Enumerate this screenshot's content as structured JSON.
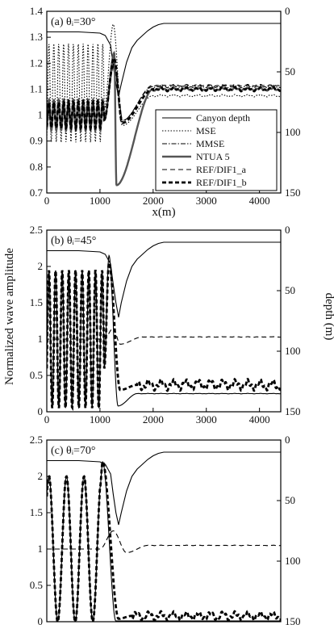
{
  "figure": {
    "ylabel_left": "Normalized wave amplitude",
    "ylabel_right": "depth (m)"
  },
  "chart_data": [
    {
      "type": "line",
      "panel_label": "(a)",
      "angle_label": "θᵢ=30°",
      "xlabel": "x(m)",
      "xlim": [
        0,
        4400
      ],
      "ylim": [
        0.7,
        1.4
      ],
      "y2lim": [
        150,
        0
      ],
      "x_ticks": [
        "0",
        "1000",
        "2000",
        "3000",
        "4000"
      ],
      "y_ticks": [
        "0.7",
        "0.8",
        "0.9",
        "1",
        "1.1",
        "1.2",
        "1.3",
        "1.4"
      ],
      "y2_ticks": [
        "0",
        "50",
        "100",
        "150"
      ],
      "legend": {
        "position": "right",
        "entries": [
          "Canyon depth",
          "MSE",
          "MMSE",
          "NTUA 5",
          "REF/DIF1_a",
          "REF/DIF1_b"
        ]
      },
      "series": [
        {
          "name": "Canyon depth",
          "axis": "right",
          "style": "thin-solid",
          "x": [
            0,
            600,
            1000,
            1100,
            1200,
            1250,
            1300,
            1350,
            1400,
            1500,
            1600,
            1700,
            1800,
            1900,
            2000,
            2100,
            2200,
            2400,
            4400
          ],
          "y": [
            17,
            17,
            18,
            20,
            28,
            45,
            60,
            70,
            60,
            42,
            30,
            24,
            20,
            16,
            13,
            11,
            10,
            10,
            10
          ]
        },
        {
          "name": "MSE",
          "axis": "left",
          "style": "dotted",
          "profile": {
            "osc_end": 1080,
            "period": 92,
            "amp": 0.19,
            "base": 1.085,
            "peak_x": 1250,
            "peak_y": 1.35,
            "dip_x": 1420,
            "dip_y": 0.96,
            "settle_x": 2000,
            "final": 1.075,
            "ripple": 0.003
          }
        },
        {
          "name": "MMSE",
          "axis": "left",
          "style": "dash-dot",
          "profile": {
            "osc_end": 1080,
            "period": 92,
            "amp": 0.055,
            "base": 1.0,
            "peak_x": 1270,
            "peak_y": 1.2,
            "dip_x": 1400,
            "dip_y": 0.975,
            "settle_x": 2000,
            "final": 1.11,
            "ripple": 0.003
          }
        },
        {
          "name": "NTUA 5",
          "axis": "left",
          "style": "thick-gray",
          "profile": {
            "osc_end": 1080,
            "period": 92,
            "amp": 0.06,
            "base": 1.0,
            "peak_x": 1270,
            "peak_y": 1.24,
            "dip_x": 1310,
            "dip_y": 0.73,
            "settle_x": 2000,
            "final": 1.1,
            "ripple": 0.004
          }
        },
        {
          "name": "REF/DIF1_a",
          "axis": "left",
          "style": "dashed",
          "profile": {
            "osc_end": 1080,
            "period": 92,
            "amp": 0.045,
            "base": 1.0,
            "peak_x": 1270,
            "peak_y": 1.2,
            "dip_x": 1430,
            "dip_y": 0.98,
            "settle_x": 2000,
            "final": 1.115,
            "ripple": 0.002
          }
        },
        {
          "name": "REF/DIF1_b",
          "axis": "left",
          "style": "thick-dashed",
          "profile": {
            "osc_end": 1080,
            "period": 92,
            "amp": 0.05,
            "base": 1.0,
            "peak_x": 1265,
            "peak_y": 1.22,
            "dip_x": 1420,
            "dip_y": 0.97,
            "settle_x": 2000,
            "final": 1.1,
            "ripple": 0.005
          }
        }
      ]
    },
    {
      "type": "line",
      "panel_label": "(b)",
      "angle_label": "θᵢ=45°",
      "xlim": [
        0,
        4400
      ],
      "ylim": [
        0,
        2.5
      ],
      "y2lim": [
        150,
        0
      ],
      "x_ticks": [
        "0",
        "1000",
        "2000",
        "3000",
        "4000"
      ],
      "y_ticks": [
        "0",
        "0.5",
        "1",
        "1.5",
        "2",
        "2.5"
      ],
      "y2_ticks": [
        "0",
        "50",
        "100",
        "150"
      ],
      "series": [
        {
          "name": "Canyon depth",
          "axis": "right",
          "style": "thin-solid",
          "x": [
            0,
            600,
            1000,
            1100,
            1200,
            1250,
            1300,
            1350,
            1400,
            1500,
            1600,
            1700,
            1800,
            1900,
            2000,
            2100,
            2200,
            2400,
            4400
          ],
          "y": [
            17,
            17,
            18,
            20,
            28,
            45,
            60,
            72,
            60,
            42,
            30,
            24,
            20,
            16,
            13,
            11,
            10,
            10,
            10
          ]
        },
        {
          "name": "NTUA 5",
          "axis": "left",
          "style": "thin-solid",
          "profile": {
            "osc_end": 1080,
            "period": 125,
            "amp": 0.95,
            "base": 1.0,
            "peak_x": 1170,
            "peak_y": 2.15,
            "dip_x": 1340,
            "dip_y": 0.08,
            "settle_x": 1700,
            "final": 0.25,
            "ripple": 0.002
          }
        },
        {
          "name": "REF/DIF1_b",
          "axis": "left",
          "style": "thick-dashed",
          "profile": {
            "osc_end": 1080,
            "period": 125,
            "amp": 0.95,
            "base": 1.0,
            "peak_x": 1170,
            "peak_y": 2.05,
            "dip_x": 1380,
            "dip_y": 0.3,
            "settle_x": 1700,
            "final": 0.37,
            "ripple": 0.05
          }
        },
        {
          "name": "REF/DIF1_a",
          "axis": "left",
          "style": "dashed",
          "profile": {
            "osc_end": 1080,
            "period": 125,
            "amp": 0.0,
            "base": 1.0,
            "peak_x": 1250,
            "peak_y": 1.15,
            "dip_x": 1380,
            "dip_y": 0.93,
            "settle_x": 1800,
            "final": 1.03,
            "ripple": 0.002
          }
        }
      ]
    },
    {
      "type": "line",
      "panel_label": "(c)",
      "angle_label": "θᵢ=70°",
      "xlim": [
        0,
        4400
      ],
      "ylim": [
        0,
        2.5
      ],
      "y2lim": [
        150,
        0
      ],
      "y_ticks": [
        "0",
        "0.5",
        "1",
        "1.5",
        "2",
        "2.5"
      ],
      "y2_ticks": [
        "0",
        "50",
        "100",
        "150"
      ],
      "series": [
        {
          "name": "Canyon depth",
          "axis": "right",
          "style": "thin-solid",
          "x": [
            0,
            600,
            1000,
            1100,
            1200,
            1250,
            1300,
            1350,
            1400,
            1500,
            1600,
            1700,
            1800,
            1900,
            2000,
            2100,
            2200,
            2400,
            4400
          ],
          "y": [
            17,
            17,
            18,
            20,
            28,
            45,
            60,
            70,
            60,
            42,
            30,
            24,
            20,
            16,
            13,
            11,
            10,
            10,
            10
          ]
        },
        {
          "name": "NTUA 5",
          "axis": "left",
          "style": "thin-solid",
          "profile": {
            "osc_end": 1000,
            "period": 330,
            "amp": 1.0,
            "base": 1.0,
            "peak_x": 1050,
            "peak_y": 2.2,
            "dip_x": 1300,
            "dip_y": 0.01,
            "settle_x": 1500,
            "final": 0.01,
            "ripple": 0.0
          }
        },
        {
          "name": "REF/DIF1_b",
          "axis": "left",
          "style": "thick-dashed",
          "profile": {
            "osc_end": 1000,
            "period": 330,
            "amp": 1.0,
            "base": 1.0,
            "peak_x": 1050,
            "peak_y": 2.2,
            "dip_x": 1350,
            "dip_y": 0.04,
            "settle_x": 1600,
            "final": 0.08,
            "ripple": 0.04
          }
        },
        {
          "name": "REF/DIF1_a",
          "axis": "left",
          "style": "dashed",
          "profile": {
            "osc_end": 1000,
            "period": 330,
            "amp": 0.0,
            "base": 1.0,
            "peak_x": 1250,
            "peak_y": 1.25,
            "dip_x": 1500,
            "dip_y": 0.95,
            "settle_x": 1900,
            "final": 1.05,
            "ripple": 0.002
          }
        }
      ]
    }
  ]
}
